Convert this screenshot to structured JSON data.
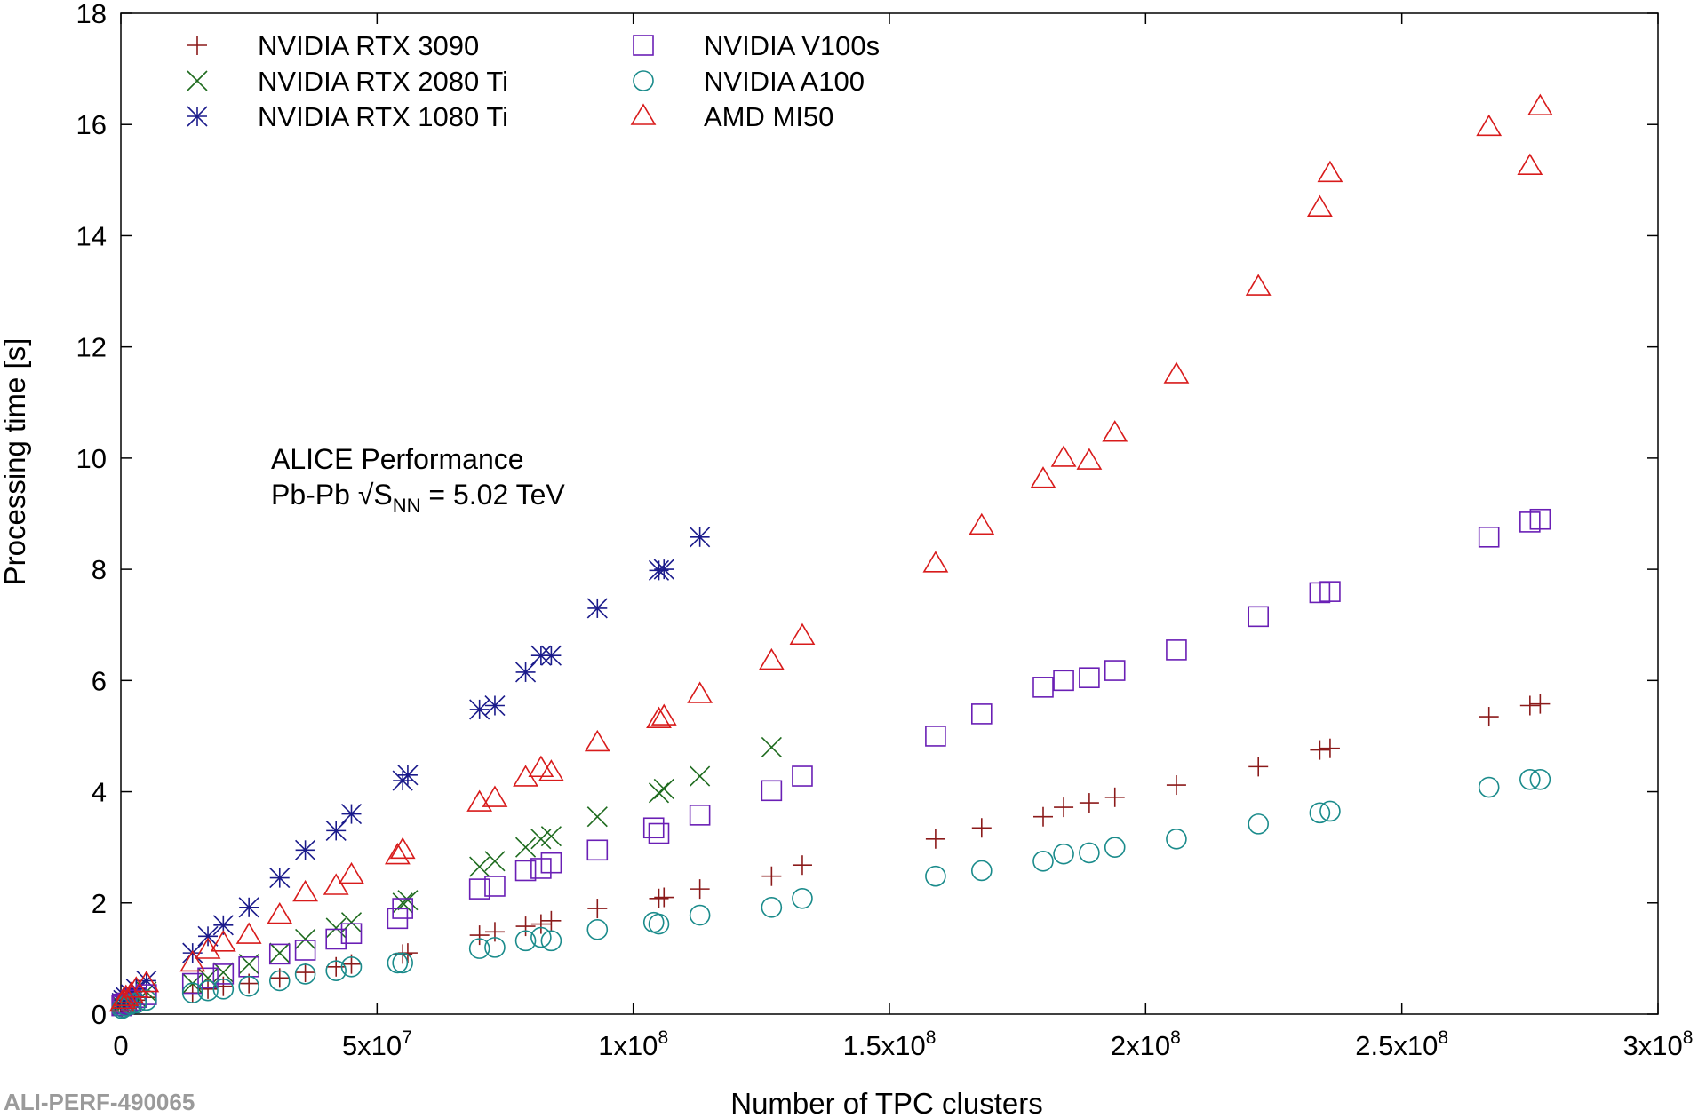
{
  "chart_data": {
    "type": "scatter",
    "title": "",
    "xlabel": "Number of TPC clusters",
    "ylabel": "Processing time [s]",
    "xlim": [
      0,
      300000000
    ],
    "ylim": [
      0,
      18
    ],
    "grid": false,
    "legend_position": "top-left",
    "x_ticks": [
      {
        "value": 0,
        "label": "0",
        "exp": ""
      },
      {
        "value": 50000000,
        "label": "5x10",
        "exp": "7"
      },
      {
        "value": 100000000,
        "label": "1x10",
        "exp": "8"
      },
      {
        "value": 150000000,
        "label": "1.5x10",
        "exp": "8"
      },
      {
        "value": 200000000,
        "label": "2x10",
        "exp": "8"
      },
      {
        "value": 250000000,
        "label": "2.5x10",
        "exp": "8"
      },
      {
        "value": 300000000,
        "label": "3x10",
        "exp": "8"
      }
    ],
    "y_ticks": [
      {
        "value": 0,
        "label": "0"
      },
      {
        "value": 2,
        "label": "2"
      },
      {
        "value": 4,
        "label": "4"
      },
      {
        "value": 6,
        "label": "6"
      },
      {
        "value": 8,
        "label": "8"
      },
      {
        "value": 10,
        "label": "10"
      },
      {
        "value": 12,
        "label": "12"
      },
      {
        "value": 14,
        "label": "14"
      },
      {
        "value": 16,
        "label": "16"
      },
      {
        "value": 18,
        "label": "18"
      }
    ],
    "annotations": {
      "line1": "ALICE Performance",
      "line2_prefix": "Pb-Pb √S",
      "line2_sub": "NN",
      "line2_suffix": " = 5.02 TeV"
    },
    "watermark": "ALI-PERF-490065",
    "series": [
      {
        "name": "NVIDIA RTX 3090",
        "marker": "plus",
        "color": "#8b1a1a",
        "x": [
          0.2,
          0.5,
          1,
          2,
          3,
          5,
          14,
          17,
          20,
          25,
          31,
          36,
          42,
          45,
          55,
          56,
          70,
          73,
          79,
          82,
          84,
          93,
          105,
          106,
          113,
          127,
          133,
          159,
          168,
          180,
          184,
          189,
          194,
          206,
          222,
          234,
          236,
          267,
          275,
          277
        ],
        "y": [
          0.12,
          0.15,
          0.18,
          0.2,
          0.25,
          0.3,
          0.38,
          0.45,
          0.5,
          0.55,
          0.65,
          0.75,
          0.85,
          0.9,
          1.08,
          1.1,
          1.42,
          1.48,
          1.58,
          1.62,
          1.68,
          1.9,
          2.08,
          2.1,
          2.25,
          2.48,
          2.68,
          3.15,
          3.35,
          3.55,
          3.72,
          3.8,
          3.9,
          4.12,
          4.45,
          4.75,
          4.78,
          5.35,
          5.55,
          5.58
        ],
        "x_scale": 1000000
      },
      {
        "name": "NVIDIA RTX 2080 Ti",
        "marker": "cross",
        "color": "#1e6b1e",
        "x": [
          0.2,
          0.5,
          1,
          2,
          3,
          5,
          14,
          17,
          20,
          25,
          31,
          36,
          42,
          45,
          55,
          56,
          70,
          73,
          79,
          82,
          84,
          93,
          105,
          106,
          113,
          127
        ],
        "y": [
          0.15,
          0.18,
          0.22,
          0.25,
          0.3,
          0.4,
          0.55,
          0.65,
          0.75,
          0.9,
          1.1,
          1.35,
          1.55,
          1.65,
          2.0,
          2.05,
          2.65,
          2.75,
          3.0,
          3.15,
          3.2,
          3.55,
          3.98,
          4.05,
          4.28,
          4.8
        ],
        "x_scale": 1000000
      },
      {
        "name": "NVIDIA RTX 1080 Ti",
        "marker": "star",
        "color": "#1a1a8b",
        "x": [
          0.2,
          0.5,
          1,
          2,
          3,
          5,
          14,
          17,
          20,
          25,
          31,
          36,
          42,
          45,
          55,
          56,
          70,
          73,
          79,
          82,
          84,
          93,
          105,
          106,
          113
        ],
        "y": [
          0.2,
          0.25,
          0.3,
          0.35,
          0.45,
          0.6,
          1.1,
          1.4,
          1.6,
          1.92,
          2.45,
          2.95,
          3.3,
          3.6,
          4.2,
          4.3,
          5.48,
          5.55,
          6.15,
          6.45,
          6.45,
          7.3,
          7.98,
          8.0,
          8.58
        ],
        "x_scale": 1000000
      },
      {
        "name": "NVIDIA V100s",
        "marker": "square",
        "color": "#6a1fb5",
        "x": [
          0.2,
          0.5,
          1,
          2,
          3,
          5,
          14,
          17,
          20,
          25,
          31,
          36,
          42,
          45,
          54,
          55,
          70,
          73,
          79,
          82,
          84,
          93,
          104,
          105,
          113,
          127,
          133,
          159,
          168,
          180,
          184,
          189,
          194,
          206,
          222,
          234,
          236,
          267,
          275,
          277
        ],
        "y": [
          0.15,
          0.18,
          0.2,
          0.25,
          0.3,
          0.35,
          0.55,
          0.65,
          0.72,
          0.85,
          1.08,
          1.15,
          1.35,
          1.45,
          1.72,
          1.9,
          2.25,
          2.3,
          2.58,
          2.62,
          2.72,
          2.95,
          3.35,
          3.25,
          3.58,
          4.02,
          4.28,
          5.0,
          5.4,
          5.88,
          6.0,
          6.05,
          6.18,
          6.55,
          7.15,
          7.58,
          7.6,
          8.58,
          8.85,
          8.9
        ],
        "x_scale": 1000000
      },
      {
        "name": "NVIDIA A100",
        "marker": "circle",
        "color": "#1a8b8b",
        "x": [
          0.2,
          0.5,
          1,
          2,
          3,
          5,
          14,
          17,
          20,
          25,
          31,
          36,
          42,
          45,
          54,
          55,
          70,
          73,
          79,
          82,
          84,
          93,
          104,
          105,
          113,
          127,
          133,
          159,
          168,
          180,
          184,
          189,
          194,
          206,
          222,
          234,
          236,
          267,
          275,
          277
        ],
        "y": [
          0.1,
          0.12,
          0.15,
          0.18,
          0.2,
          0.25,
          0.38,
          0.42,
          0.45,
          0.5,
          0.6,
          0.72,
          0.78,
          0.85,
          0.92,
          0.92,
          1.18,
          1.2,
          1.32,
          1.38,
          1.32,
          1.52,
          1.65,
          1.62,
          1.78,
          1.92,
          2.08,
          2.48,
          2.58,
          2.75,
          2.88,
          2.9,
          3.0,
          3.15,
          3.42,
          3.62,
          3.65,
          4.08,
          4.22,
          4.22
        ],
        "x_scale": 1000000
      },
      {
        "name": "AMD MI50",
        "marker": "triangle",
        "color": "#d81b1b",
        "x": [
          0.2,
          0.5,
          1,
          2,
          3,
          5,
          14,
          17,
          20,
          25,
          31,
          36,
          42,
          45,
          54,
          55,
          70,
          73,
          79,
          82,
          84,
          93,
          105,
          106,
          113,
          127,
          133,
          159,
          168,
          180,
          184,
          189,
          194,
          206,
          222,
          234,
          236,
          267,
          275,
          277
        ],
        "y": [
          0.2,
          0.25,
          0.3,
          0.35,
          0.45,
          0.55,
          0.92,
          1.15,
          1.28,
          1.42,
          1.78,
          2.18,
          2.3,
          2.5,
          2.85,
          2.95,
          3.8,
          3.88,
          4.25,
          4.42,
          4.35,
          4.88,
          5.3,
          5.35,
          5.75,
          6.35,
          6.8,
          8.1,
          8.78,
          9.62,
          10.0,
          9.95,
          10.45,
          11.5,
          13.08,
          14.5,
          15.12,
          15.95,
          15.25,
          16.32
        ],
        "x_scale": 1000000
      }
    ]
  }
}
